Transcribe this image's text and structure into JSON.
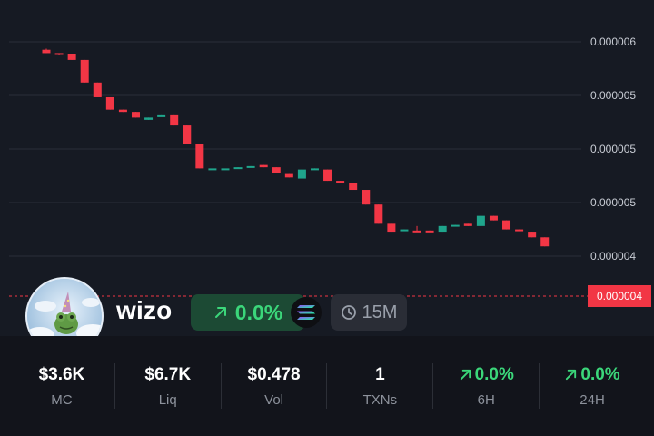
{
  "chart_data": {
    "type": "candlestick",
    "y_ticks": [
      "0.000006",
      "0.000005",
      "0.000005",
      "0.000005",
      "0.000004"
    ],
    "current_price": "0.000004",
    "ylim": [
      3.8e-06,
      6.05e-06
    ],
    "candles": [
      {
        "o": 5.98e-06,
        "c": 5.95e-06,
        "h": 5.99e-06,
        "l": 5.95e-06
      },
      {
        "o": 5.95e-06,
        "c": 5.94e-06,
        "h": 5.95e-06,
        "l": 5.93e-06
      },
      {
        "o": 5.94e-06,
        "c": 5.89e-06,
        "h": 5.94e-06,
        "l": 5.89e-06
      },
      {
        "o": 5.89e-06,
        "c": 5.69e-06,
        "h": 5.89e-06,
        "l": 5.69e-06
      },
      {
        "o": 5.69e-06,
        "c": 5.56e-06,
        "h": 5.69e-06,
        "l": 5.56e-06
      },
      {
        "o": 5.56e-06,
        "c": 5.45e-06,
        "h": 5.56e-06,
        "l": 5.45e-06
      },
      {
        "o": 5.45e-06,
        "c": 5.43e-06,
        "h": 5.45e-06,
        "l": 5.43e-06
      },
      {
        "o": 5.43e-06,
        "c": 5.38e-06,
        "h": 5.43e-06,
        "l": 5.38e-06
      },
      {
        "o": 5.36e-06,
        "c": 5.38e-06,
        "h": 5.38e-06,
        "l": 5.36e-06
      },
      {
        "o": 5.39e-06,
        "c": 5.4e-06,
        "h": 5.4e-06,
        "l": 5.39e-06
      },
      {
        "o": 5.4e-06,
        "c": 5.31e-06,
        "h": 5.4e-06,
        "l": 5.31e-06
      },
      {
        "o": 5.31e-06,
        "c": 5.15e-06,
        "h": 5.31e-06,
        "l": 5.15e-06
      },
      {
        "o": 5.15e-06,
        "c": 4.93e-06,
        "h": 5.15e-06,
        "l": 4.93e-06
      },
      {
        "o": 4.93e-06,
        "c": 4.93e-06,
        "h": 4.93e-06,
        "l": 4.93e-06
      },
      {
        "o": 4.93e-06,
        "c": 4.93e-06,
        "h": 4.93e-06,
        "l": 4.93e-06
      },
      {
        "o": 4.93e-06,
        "c": 4.94e-06,
        "h": 4.94e-06,
        "l": 4.93e-06
      },
      {
        "o": 4.94e-06,
        "c": 4.95e-06,
        "h": 4.95e-06,
        "l": 4.94e-06
      },
      {
        "o": 4.96e-06,
        "c": 4.94e-06,
        "h": 4.96e-06,
        "l": 4.94e-06
      },
      {
        "o": 4.94e-06,
        "c": 4.89e-06,
        "h": 4.94e-06,
        "l": 4.89e-06
      },
      {
        "o": 4.88e-06,
        "c": 4.85e-06,
        "h": 4.88e-06,
        "l": 4.85e-06
      },
      {
        "o": 4.84e-06,
        "c": 4.92e-06,
        "h": 4.92e-06,
        "l": 4.84e-06
      },
      {
        "o": 4.92e-06,
        "c": 4.93e-06,
        "h": 4.93e-06,
        "l": 4.92e-06
      },
      {
        "o": 4.92e-06,
        "c": 4.82e-06,
        "h": 4.92e-06,
        "l": 4.82e-06
      },
      {
        "o": 4.82e-06,
        "c": 4.8e-06,
        "h": 4.82e-06,
        "l": 4.8e-06
      },
      {
        "o": 4.8e-06,
        "c": 4.74e-06,
        "h": 4.8e-06,
        "l": 4.74e-06
      },
      {
        "o": 4.74e-06,
        "c": 4.61e-06,
        "h": 4.74e-06,
        "l": 4.61e-06
      },
      {
        "o": 4.61e-06,
        "c": 4.44e-06,
        "h": 4.61e-06,
        "l": 4.44e-06
      },
      {
        "o": 4.44e-06,
        "c": 4.37e-06,
        "h": 4.44e-06,
        "l": 4.37e-06
      },
      {
        "o": 4.38e-06,
        "c": 4.39e-06,
        "h": 4.39e-06,
        "l": 4.38e-06
      },
      {
        "o": 4.38e-06,
        "c": 4.37e-06,
        "h": 4.42e-06,
        "l": 4.37e-06
      },
      {
        "o": 4.38e-06,
        "c": 4.37e-06,
        "h": 4.38e-06,
        "l": 4.37e-06
      },
      {
        "o": 4.37e-06,
        "c": 4.42e-06,
        "h": 4.42e-06,
        "l": 4.37e-06
      },
      {
        "o": 4.42e-06,
        "c": 4.43e-06,
        "h": 4.43e-06,
        "l": 4.42e-06
      },
      {
        "o": 4.44e-06,
        "c": 4.42e-06,
        "h": 4.44e-06,
        "l": 4.42e-06
      },
      {
        "o": 4.42e-06,
        "c": 4.51e-06,
        "h": 4.51e-06,
        "l": 4.42e-06
      },
      {
        "o": 4.51e-06,
        "c": 4.47e-06,
        "h": 4.51e-06,
        "l": 4.47e-06
      },
      {
        "o": 4.47e-06,
        "c": 4.39e-06,
        "h": 4.47e-06,
        "l": 4.39e-06
      },
      {
        "o": 4.39e-06,
        "c": 4.38e-06,
        "h": 4.39e-06,
        "l": 4.38e-06
      },
      {
        "o": 4.37e-06,
        "c": 4.32e-06,
        "h": 4.37e-06,
        "l": 4.32e-06
      },
      {
        "o": 4.32e-06,
        "c": 4.24e-06,
        "h": 4.32e-06,
        "l": 4.24e-06
      }
    ],
    "colors": {
      "up": "#1fa58c",
      "down": "#f23645",
      "grid": "#2b2f38",
      "price_line": "#f23645"
    }
  },
  "token": {
    "name": "wizo",
    "change": "0.0%",
    "interval": "15M",
    "chain": "solana-icon"
  },
  "stats": [
    {
      "value": "$3.6K",
      "label": "MC"
    },
    {
      "value": "$6.7K",
      "label": "Liq"
    },
    {
      "value": "$0.478",
      "label": "Vol"
    },
    {
      "value": "1",
      "label": "TXNs"
    },
    {
      "value": "0.0%",
      "label": "6H",
      "trend": "up"
    },
    {
      "value": "0.0%",
      "label": "24H",
      "trend": "up"
    }
  ],
  "colors": {
    "background": "#161a23",
    "positive": "#3bd67a",
    "negative": "#f23645"
  }
}
